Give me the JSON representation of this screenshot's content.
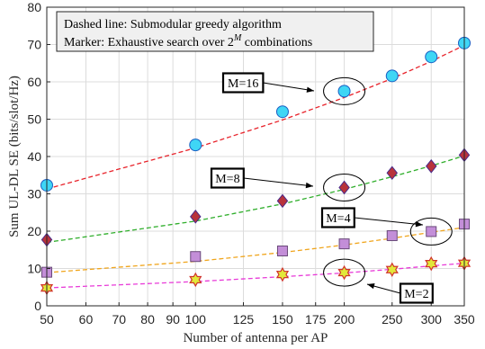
{
  "chart_data": {
    "type": "line",
    "xlabel": "Number of antenna per AP",
    "ylabel": "Sum UL-DL SE (bits/slot/Hz)",
    "xscale": "log",
    "xlim": [
      50,
      350
    ],
    "ylim": [
      0,
      80
    ],
    "xticks": [
      50,
      60,
      70,
      80,
      90,
      100,
      125,
      150,
      175,
      200,
      250,
      300,
      350
    ],
    "yticks": [
      0,
      10,
      20,
      30,
      40,
      50,
      60,
      70,
      80
    ],
    "grid": true,
    "legend_note": {
      "line1": "Dashed line: Submodular greedy algorithm",
      "line2_prefix": "Marker: Exhaustive search over 2",
      "line2_sup": "M",
      "line2_suffix": " combinations"
    },
    "series": [
      {
        "label": "M=16",
        "color": "#e8232b",
        "marker": "circle",
        "marker_fill": "#3fd6f5",
        "greedy_x": [
          50,
          100,
          150,
          200,
          250,
          300,
          350
        ],
        "greedy_y": [
          31.3,
          42.3,
          49.8,
          55.8,
          60.9,
          65.5,
          69.8
        ],
        "exhaustive_x": [
          50,
          100,
          150,
          200,
          250,
          300,
          350
        ],
        "exhaustive_y": [
          32.3,
          43.1,
          52.0,
          57.5,
          61.6,
          66.7,
          70.4
        ]
      },
      {
        "label": "M=8",
        "color": "#2fae2b",
        "marker": "diamond",
        "marker_fill": "#b8333b",
        "greedy_x": [
          50,
          100,
          150,
          200,
          250,
          300,
          350
        ],
        "greedy_y": [
          17.0,
          22.7,
          27.3,
          31.2,
          34.6,
          37.5,
          40.2
        ],
        "exhaustive_x": [
          50,
          100,
          150,
          200,
          250,
          300,
          350
        ],
        "exhaustive_y": [
          17.7,
          23.9,
          28.1,
          31.7,
          35.6,
          37.4,
          40.4
        ]
      },
      {
        "label": "M=4",
        "color": "#f0a51c",
        "marker": "square",
        "marker_fill": "#c38ed8",
        "greedy_x": [
          50,
          100,
          150,
          200,
          250,
          300,
          350
        ],
        "greedy_y": [
          8.9,
          11.9,
          14.3,
          16.3,
          18.1,
          19.7,
          21.0
        ],
        "exhaustive_x": [
          50,
          100,
          150,
          200,
          250,
          300,
          350
        ],
        "exhaustive_y": [
          9.0,
          13.2,
          14.7,
          16.6,
          18.8,
          19.9,
          21.9
        ]
      },
      {
        "label": "M=2",
        "color": "#e83ad8",
        "marker": "hexagram",
        "marker_fill": "#e2e83a",
        "greedy_x": [
          50,
          100,
          150,
          200,
          250,
          300,
          350
        ],
        "greedy_y": [
          4.8,
          6.5,
          7.8,
          8.8,
          9.8,
          10.7,
          11.4
        ],
        "exhaustive_x": [
          50,
          100,
          150,
          200,
          250,
          300,
          350
        ],
        "exhaustive_y": [
          4.8,
          7.0,
          8.4,
          8.9,
          9.7,
          11.3,
          11.4
        ]
      }
    ]
  },
  "annotations": [
    {
      "text": "M=16",
      "series": 0
    },
    {
      "text": "M=8",
      "series": 1
    },
    {
      "text": "M=4",
      "series": 2
    },
    {
      "text": "M=2",
      "series": 3
    }
  ],
  "colors": {
    "axis": "#262626",
    "grid": "#dcdcdc",
    "legend_bg": "#f0f0f0"
  }
}
